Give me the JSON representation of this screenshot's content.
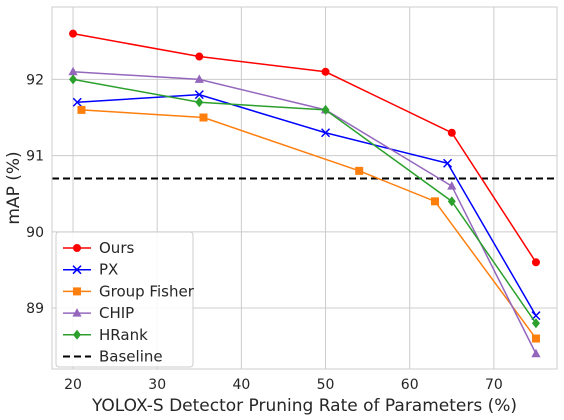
{
  "chart_data": {
    "type": "line",
    "xlabel": "YOLOX-S Detector Pruning Rate of Parameters (%)",
    "ylabel": "mAP (%)",
    "xlim": [
      17.5,
      77.5
    ],
    "ylim": [
      88.2,
      92.95
    ],
    "x_ticks": [
      20,
      30,
      40,
      50,
      60,
      70
    ],
    "y_ticks": [
      89,
      90,
      91,
      92
    ],
    "grid": true,
    "legend_position": "lower-left",
    "series": [
      {
        "name": "Ours",
        "color": "#ff0000",
        "marker": "circle",
        "x": [
          20,
          35,
          50,
          65,
          75
        ],
        "y": [
          92.6,
          92.3,
          92.1,
          91.3,
          89.6
        ]
      },
      {
        "name": "PX",
        "color": "#0000ff",
        "marker": "x",
        "x": [
          20.5,
          35,
          50,
          64.5,
          75
        ],
        "y": [
          91.7,
          91.8,
          91.3,
          90.9,
          88.9
        ]
      },
      {
        "name": "Group Fisher",
        "color": "#ff7f0e",
        "marker": "square",
        "x": [
          21,
          35.5,
          54,
          63,
          75
        ],
        "y": [
          91.6,
          91.5,
          90.8,
          90.4,
          88.6
        ]
      },
      {
        "name": "CHIP",
        "color": "#9467bd",
        "marker": "triangle",
        "x": [
          20,
          35,
          50,
          65,
          75
        ],
        "y": [
          92.1,
          92.0,
          91.6,
          90.6,
          88.4
        ]
      },
      {
        "name": "HRank",
        "color": "#2ca02c",
        "marker": "diamond",
        "x": [
          20,
          35,
          50,
          65,
          75
        ],
        "y": [
          92.0,
          91.7,
          91.6,
          90.4,
          88.8
        ]
      }
    ],
    "baseline": {
      "name": "Baseline",
      "y": 90.7,
      "color": "#000000",
      "style": "dashed"
    }
  }
}
